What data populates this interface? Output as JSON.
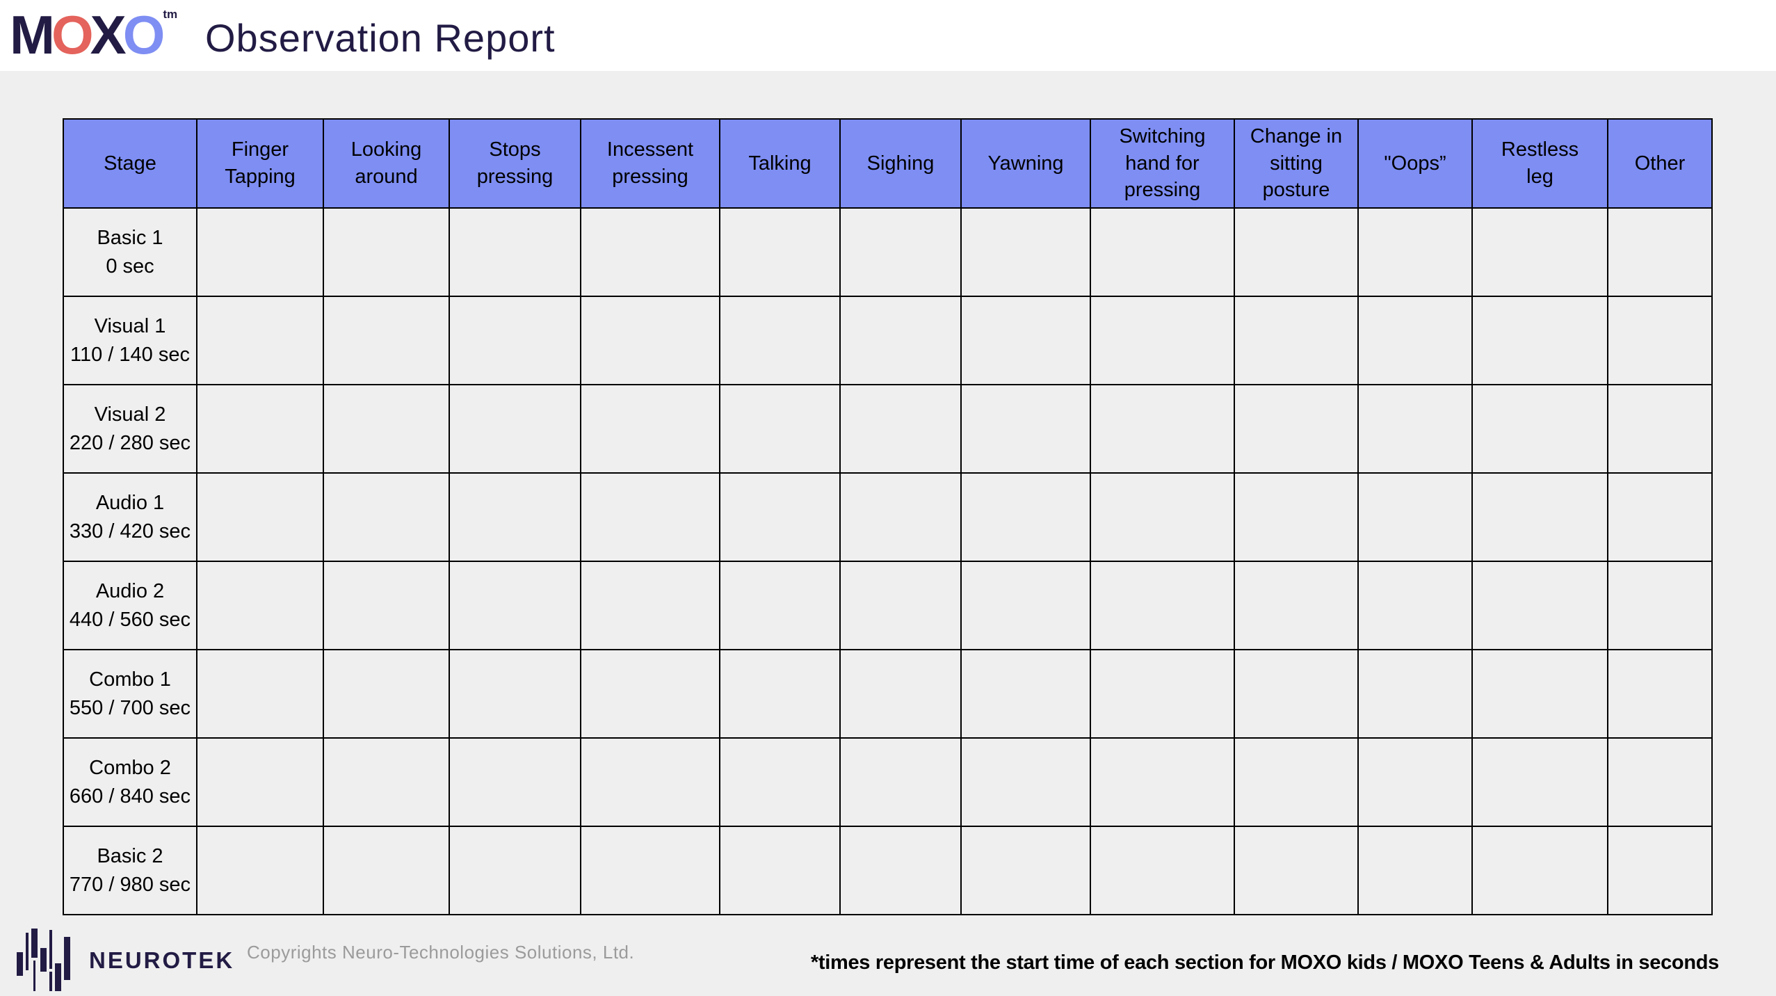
{
  "colors": {
    "navy": "#221b44",
    "coral": "#e4635c",
    "periwinkle": "#7e8ef3",
    "page_gray": "#efefef",
    "table_border": "#000000",
    "copyright_gray": "#9b9b9b"
  },
  "header": {
    "brand": {
      "m": "M",
      "o1": "O",
      "x": "X",
      "o2": "O",
      "tm": "tm"
    },
    "title": "Observation Report"
  },
  "table": {
    "columns": [
      {
        "label": "Stage"
      },
      {
        "label": "Finger\nTapping"
      },
      {
        "label": "Looking\naround"
      },
      {
        "label": "Stops\npressing"
      },
      {
        "label": "Incessent\npressing"
      },
      {
        "label": "Talking"
      },
      {
        "label": "Sighing"
      },
      {
        "label": "Yawning"
      },
      {
        "label": "Switching\nhand for\npressing"
      },
      {
        "label": "Change in\nsitting\nposture"
      },
      {
        "label": "\"Oops”"
      },
      {
        "label": "Restless\nleg"
      },
      {
        "label": "Other"
      }
    ],
    "rows": [
      {
        "stage": "Basic 1",
        "time": "0 sec"
      },
      {
        "stage": "Visual 1",
        "time": "110 / 140 sec"
      },
      {
        "stage": "Visual 2",
        "time": "220 / 280 sec"
      },
      {
        "stage": "Audio 1",
        "time": "330 / 420 sec"
      },
      {
        "stage": "Audio 2",
        "time": "440 / 560 sec"
      },
      {
        "stage": "Combo 1",
        "time": "550 / 700 sec"
      },
      {
        "stage": "Combo 2",
        "time": "660 / 840 sec"
      },
      {
        "stage": "Basic 2",
        "time": "770 / 980 sec"
      }
    ]
  },
  "footer": {
    "logo_text": "NEUROTEK",
    "copyright": "Copyrights Neuro-Technologies Solutions, Ltd.",
    "note": "*times represent the start time of each section for MOXO kids / MOXO Teens & Adults in seconds"
  }
}
